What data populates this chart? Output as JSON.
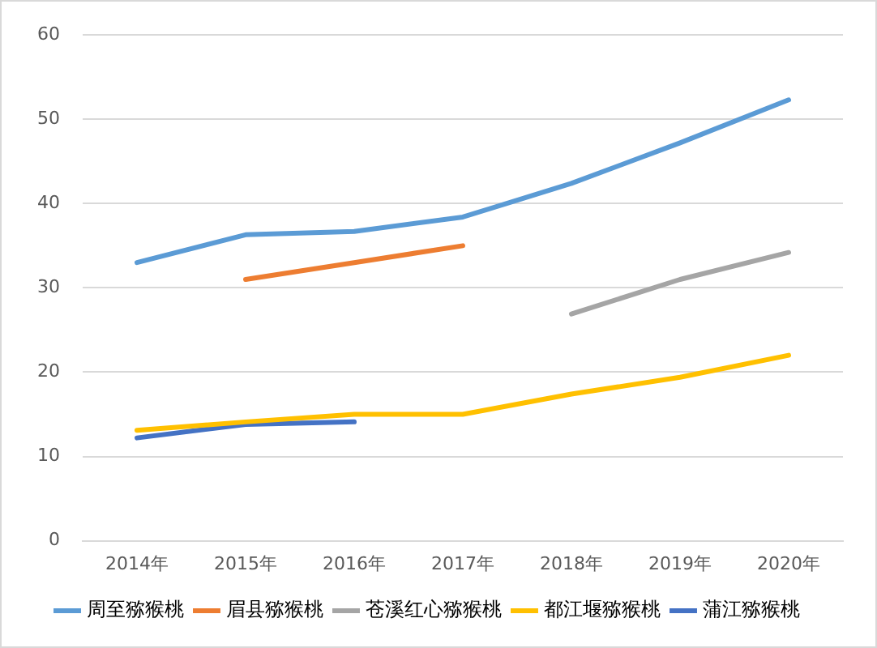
{
  "chart_data": {
    "type": "line",
    "categories": [
      "2014年",
      "2015年",
      "2016年",
      "2017年",
      "2018年",
      "2019年",
      "2020年"
    ],
    "series": [
      {
        "name": "周至猕猴桃",
        "color": "#5b9bd5",
        "values": [
          33,
          36.3,
          36.7,
          38.4,
          42.4,
          47.2,
          52.3
        ]
      },
      {
        "name": "眉县猕猴桃",
        "color": "#ed7d31",
        "values": [
          null,
          31,
          33,
          35,
          null,
          null,
          null
        ]
      },
      {
        "name": "苍溪红心猕猴桃",
        "color": "#a5a5a5",
        "values": [
          null,
          null,
          null,
          null,
          26.9,
          31,
          34.2
        ]
      },
      {
        "name": "都江堰猕猴桃",
        "color": "#ffc000",
        "values": [
          13.1,
          14.1,
          15,
          15,
          17.4,
          19.4,
          22
        ]
      },
      {
        "name": "蒲江猕猴桃",
        "color": "#4472c4",
        "values": [
          12.2,
          13.8,
          14.1,
          null,
          null,
          null,
          null
        ]
      }
    ],
    "ylim": [
      0,
      60
    ],
    "yticks": [
      0,
      10,
      20,
      30,
      40,
      50,
      60
    ],
    "grid": "y",
    "legend": "bottom",
    "marker": "none",
    "line_style": "solid"
  }
}
